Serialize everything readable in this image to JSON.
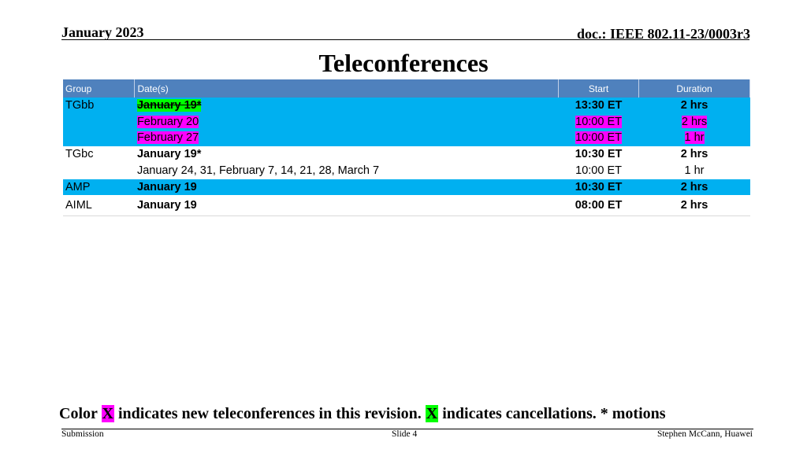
{
  "header": {
    "date": "January 2023",
    "doc": "doc.: IEEE 802.11-23/0003r3"
  },
  "title": "Teleconferences",
  "table": {
    "columns": [
      "Group",
      "Date(s)",
      "Start",
      "Duration"
    ],
    "groups": [
      {
        "group": "TGbb",
        "rows": [
          {
            "date": "January 19*",
            "start": "13:30 ET",
            "duration": "2 hrs"
          },
          {
            "date": "February 20",
            "start": "10:00 ET",
            "duration": "2 hrs"
          },
          {
            "date": "February 27",
            "start": "10:00 ET",
            "duration": "1 hr"
          }
        ]
      },
      {
        "group": "TGbc",
        "rows": [
          {
            "date": "January 19*",
            "start": "10:30 ET",
            "duration": "2 hrs"
          },
          {
            "date": "January 24, 31, February 7, 14, 21, 28, March 7",
            "start": "10:00 ET",
            "duration": "1 hr"
          }
        ]
      },
      {
        "group": "AMP",
        "rows": [
          {
            "date": "January 19",
            "start": "10:30 ET",
            "duration": "2 hrs"
          }
        ]
      },
      {
        "group": "AIML",
        "rows": [
          {
            "date": "January 19",
            "start": "08:00 ET",
            "duration": "2 hrs"
          }
        ]
      }
    ]
  },
  "note": {
    "prefix": "Color ",
    "swatch_new": "X",
    "new_text": " indicates new teleconferences in this revision. ",
    "swatch_cancel": "X",
    "cancel_text": " indicates cancellations. * motions",
    "new_color": "#ff00ff",
    "cancel_color": "#00ff00"
  },
  "footer": {
    "left": "Submission",
    "center": "Slide 4",
    "right": "Stephen McCann, Huawei"
  }
}
